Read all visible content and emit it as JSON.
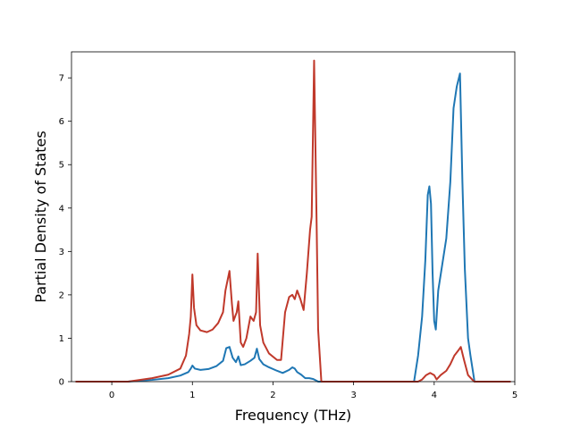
{
  "chart_data": {
    "type": "line",
    "title": "",
    "xlabel": "Frequency (THz)",
    "ylabel": "Partial Density of States",
    "xlim": [
      -0.5,
      5.0
    ],
    "ylim": [
      0,
      7.6
    ],
    "xticks": [
      0,
      1,
      2,
      3,
      4,
      5
    ],
    "yticks": [
      0,
      1,
      2,
      3,
      4,
      5,
      6,
      7
    ],
    "grid": false,
    "series": [
      {
        "color": "#1f77b4",
        "points": [
          [
            -0.45,
            0
          ],
          [
            0.2,
            0.0
          ],
          [
            0.5,
            0.04
          ],
          [
            0.7,
            0.08
          ],
          [
            0.85,
            0.14
          ],
          [
            0.95,
            0.22
          ],
          [
            0.98,
            0.3
          ],
          [
            1.0,
            0.37
          ],
          [
            1.03,
            0.3
          ],
          [
            1.1,
            0.27
          ],
          [
            1.2,
            0.29
          ],
          [
            1.3,
            0.36
          ],
          [
            1.38,
            0.48
          ],
          [
            1.42,
            0.77
          ],
          [
            1.46,
            0.8
          ],
          [
            1.5,
            0.55
          ],
          [
            1.54,
            0.45
          ],
          [
            1.57,
            0.58
          ],
          [
            1.6,
            0.38
          ],
          [
            1.65,
            0.4
          ],
          [
            1.72,
            0.48
          ],
          [
            1.77,
            0.55
          ],
          [
            1.8,
            0.76
          ],
          [
            1.83,
            0.52
          ],
          [
            1.88,
            0.4
          ],
          [
            1.95,
            0.33
          ],
          [
            2.05,
            0.25
          ],
          [
            2.12,
            0.2
          ],
          [
            2.2,
            0.27
          ],
          [
            2.24,
            0.33
          ],
          [
            2.27,
            0.3
          ],
          [
            2.3,
            0.22
          ],
          [
            2.35,
            0.16
          ],
          [
            2.4,
            0.08
          ],
          [
            2.45,
            0.08
          ],
          [
            2.5,
            0.06
          ],
          [
            2.53,
            0.03
          ],
          [
            2.56,
            0.0
          ],
          [
            3.75,
            0.0
          ],
          [
            3.8,
            0.6
          ],
          [
            3.85,
            1.5
          ],
          [
            3.89,
            2.8
          ],
          [
            3.92,
            4.3
          ],
          [
            3.94,
            4.5
          ],
          [
            3.96,
            4.1
          ],
          [
            3.98,
            2.5
          ],
          [
            4.0,
            1.4
          ],
          [
            4.02,
            1.2
          ],
          [
            4.05,
            2.1
          ],
          [
            4.1,
            2.7
          ],
          [
            4.15,
            3.3
          ],
          [
            4.2,
            4.6
          ],
          [
            4.24,
            6.3
          ],
          [
            4.28,
            6.8
          ],
          [
            4.32,
            7.1
          ],
          [
            4.35,
            4.6
          ],
          [
            4.38,
            2.6
          ],
          [
            4.42,
            1.0
          ],
          [
            4.45,
            0.6
          ],
          [
            4.5,
            0.0
          ],
          [
            4.95,
            0
          ]
        ]
      },
      {
        "color": "#c0392b",
        "points": [
          [
            -0.45,
            0
          ],
          [
            0.2,
            0.0
          ],
          [
            0.5,
            0.08
          ],
          [
            0.7,
            0.16
          ],
          [
            0.85,
            0.3
          ],
          [
            0.92,
            0.6
          ],
          [
            0.96,
            1.1
          ],
          [
            0.98,
            1.5
          ],
          [
            1.0,
            2.47
          ],
          [
            1.02,
            1.7
          ],
          [
            1.05,
            1.3
          ],
          [
            1.1,
            1.18
          ],
          [
            1.18,
            1.14
          ],
          [
            1.25,
            1.2
          ],
          [
            1.32,
            1.35
          ],
          [
            1.38,
            1.6
          ],
          [
            1.41,
            2.1
          ],
          [
            1.46,
            2.55
          ],
          [
            1.49,
            1.8
          ],
          [
            1.51,
            1.4
          ],
          [
            1.55,
            1.6
          ],
          [
            1.57,
            1.85
          ],
          [
            1.6,
            0.9
          ],
          [
            1.63,
            0.8
          ],
          [
            1.67,
            1.0
          ],
          [
            1.72,
            1.5
          ],
          [
            1.76,
            1.4
          ],
          [
            1.79,
            1.6
          ],
          [
            1.81,
            2.95
          ],
          [
            1.84,
            1.3
          ],
          [
            1.88,
            0.9
          ],
          [
            1.95,
            0.65
          ],
          [
            2.05,
            0.5
          ],
          [
            2.1,
            0.5
          ],
          [
            2.15,
            1.6
          ],
          [
            2.2,
            1.95
          ],
          [
            2.24,
            2.0
          ],
          [
            2.27,
            1.9
          ],
          [
            2.3,
            2.1
          ],
          [
            2.34,
            1.9
          ],
          [
            2.38,
            1.65
          ],
          [
            2.42,
            2.5
          ],
          [
            2.46,
            3.5
          ],
          [
            2.48,
            3.8
          ],
          [
            2.51,
            7.4
          ],
          [
            2.54,
            3.8
          ],
          [
            2.56,
            1.2
          ],
          [
            2.6,
            0.0
          ],
          [
            3.8,
            0.0
          ],
          [
            3.85,
            0.05
          ],
          [
            3.9,
            0.15
          ],
          [
            3.95,
            0.2
          ],
          [
            4.0,
            0.15
          ],
          [
            4.03,
            0.05
          ],
          [
            4.08,
            0.15
          ],
          [
            4.15,
            0.25
          ],
          [
            4.2,
            0.4
          ],
          [
            4.25,
            0.6
          ],
          [
            4.3,
            0.72
          ],
          [
            4.33,
            0.8
          ],
          [
            4.37,
            0.5
          ],
          [
            4.42,
            0.15
          ],
          [
            4.47,
            0.05
          ],
          [
            4.5,
            0.0
          ],
          [
            4.95,
            0
          ]
        ]
      }
    ]
  }
}
